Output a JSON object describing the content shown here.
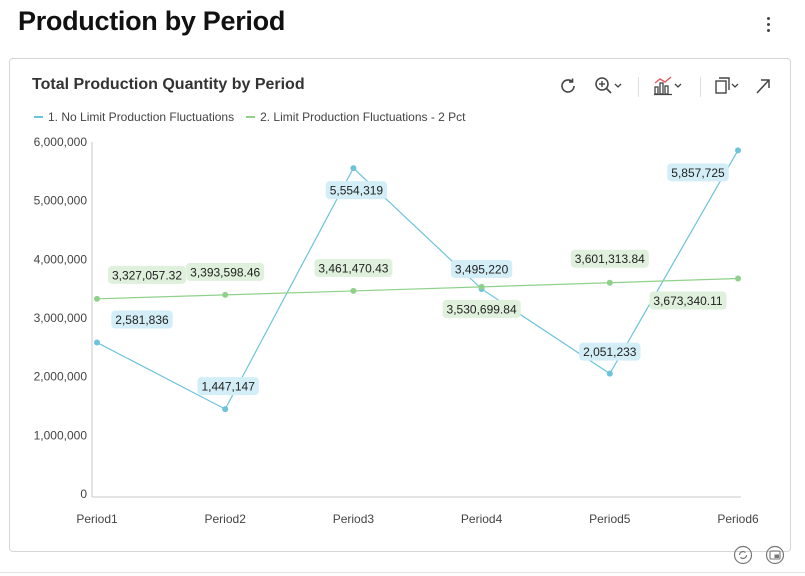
{
  "page": {
    "title": "Production by Period"
  },
  "card": {
    "title": "Total Production Quantity by Period"
  },
  "toolbar": {
    "refresh_icon": "refresh-icon",
    "zoom_icon": "zoom-in-icon",
    "chart_type_icon": "chart-type-icon",
    "copy_icon": "copy-icon",
    "expand_icon": "expand-icon"
  },
  "colors": {
    "series1": "#6cc3dc",
    "series1_label_bg": "#d3eef7",
    "series2": "#8fd18a",
    "series2_label_bg": "#dff1dc",
    "axis": "#c8c8c8",
    "text": "#333333"
  },
  "chart_data": {
    "type": "line",
    "title": "Total Production Quantity by Period",
    "xlabel": "",
    "ylabel": "",
    "categories": [
      "Period1",
      "Period2",
      "Period3",
      "Period4",
      "Period5",
      "Period6"
    ],
    "ylim": [
      0,
      6000000
    ],
    "yticks": [
      0,
      1000000,
      2000000,
      3000000,
      4000000,
      5000000,
      6000000
    ],
    "ytick_labels": [
      "0",
      "1,000,000",
      "2,000,000",
      "3,000,000",
      "4,000,000",
      "5,000,000",
      "6,000,000"
    ],
    "grid": false,
    "legend_position": "top-left",
    "series": [
      {
        "name": "1. No Limit Production Fluctuations",
        "values": [
          2581836,
          1447147,
          5554319,
          3495220,
          2051233,
          5857725
        ],
        "labels": [
          "2,581,836",
          "1,447,147",
          "5,554,319",
          "3,495,220",
          "2,051,233",
          "5,857,725"
        ]
      },
      {
        "name": "2. Limit Production Fluctuations - 2 Pct",
        "values": [
          3327057.32,
          3393598.46,
          3461470.43,
          3530699.84,
          3601313.84,
          3673340.11
        ],
        "labels": [
          "3,327,057.32",
          "3,393,598.46",
          "3,461,470.43",
          "3,530,699.84",
          "3,601,313.84",
          "3,673,340.11"
        ]
      }
    ]
  }
}
